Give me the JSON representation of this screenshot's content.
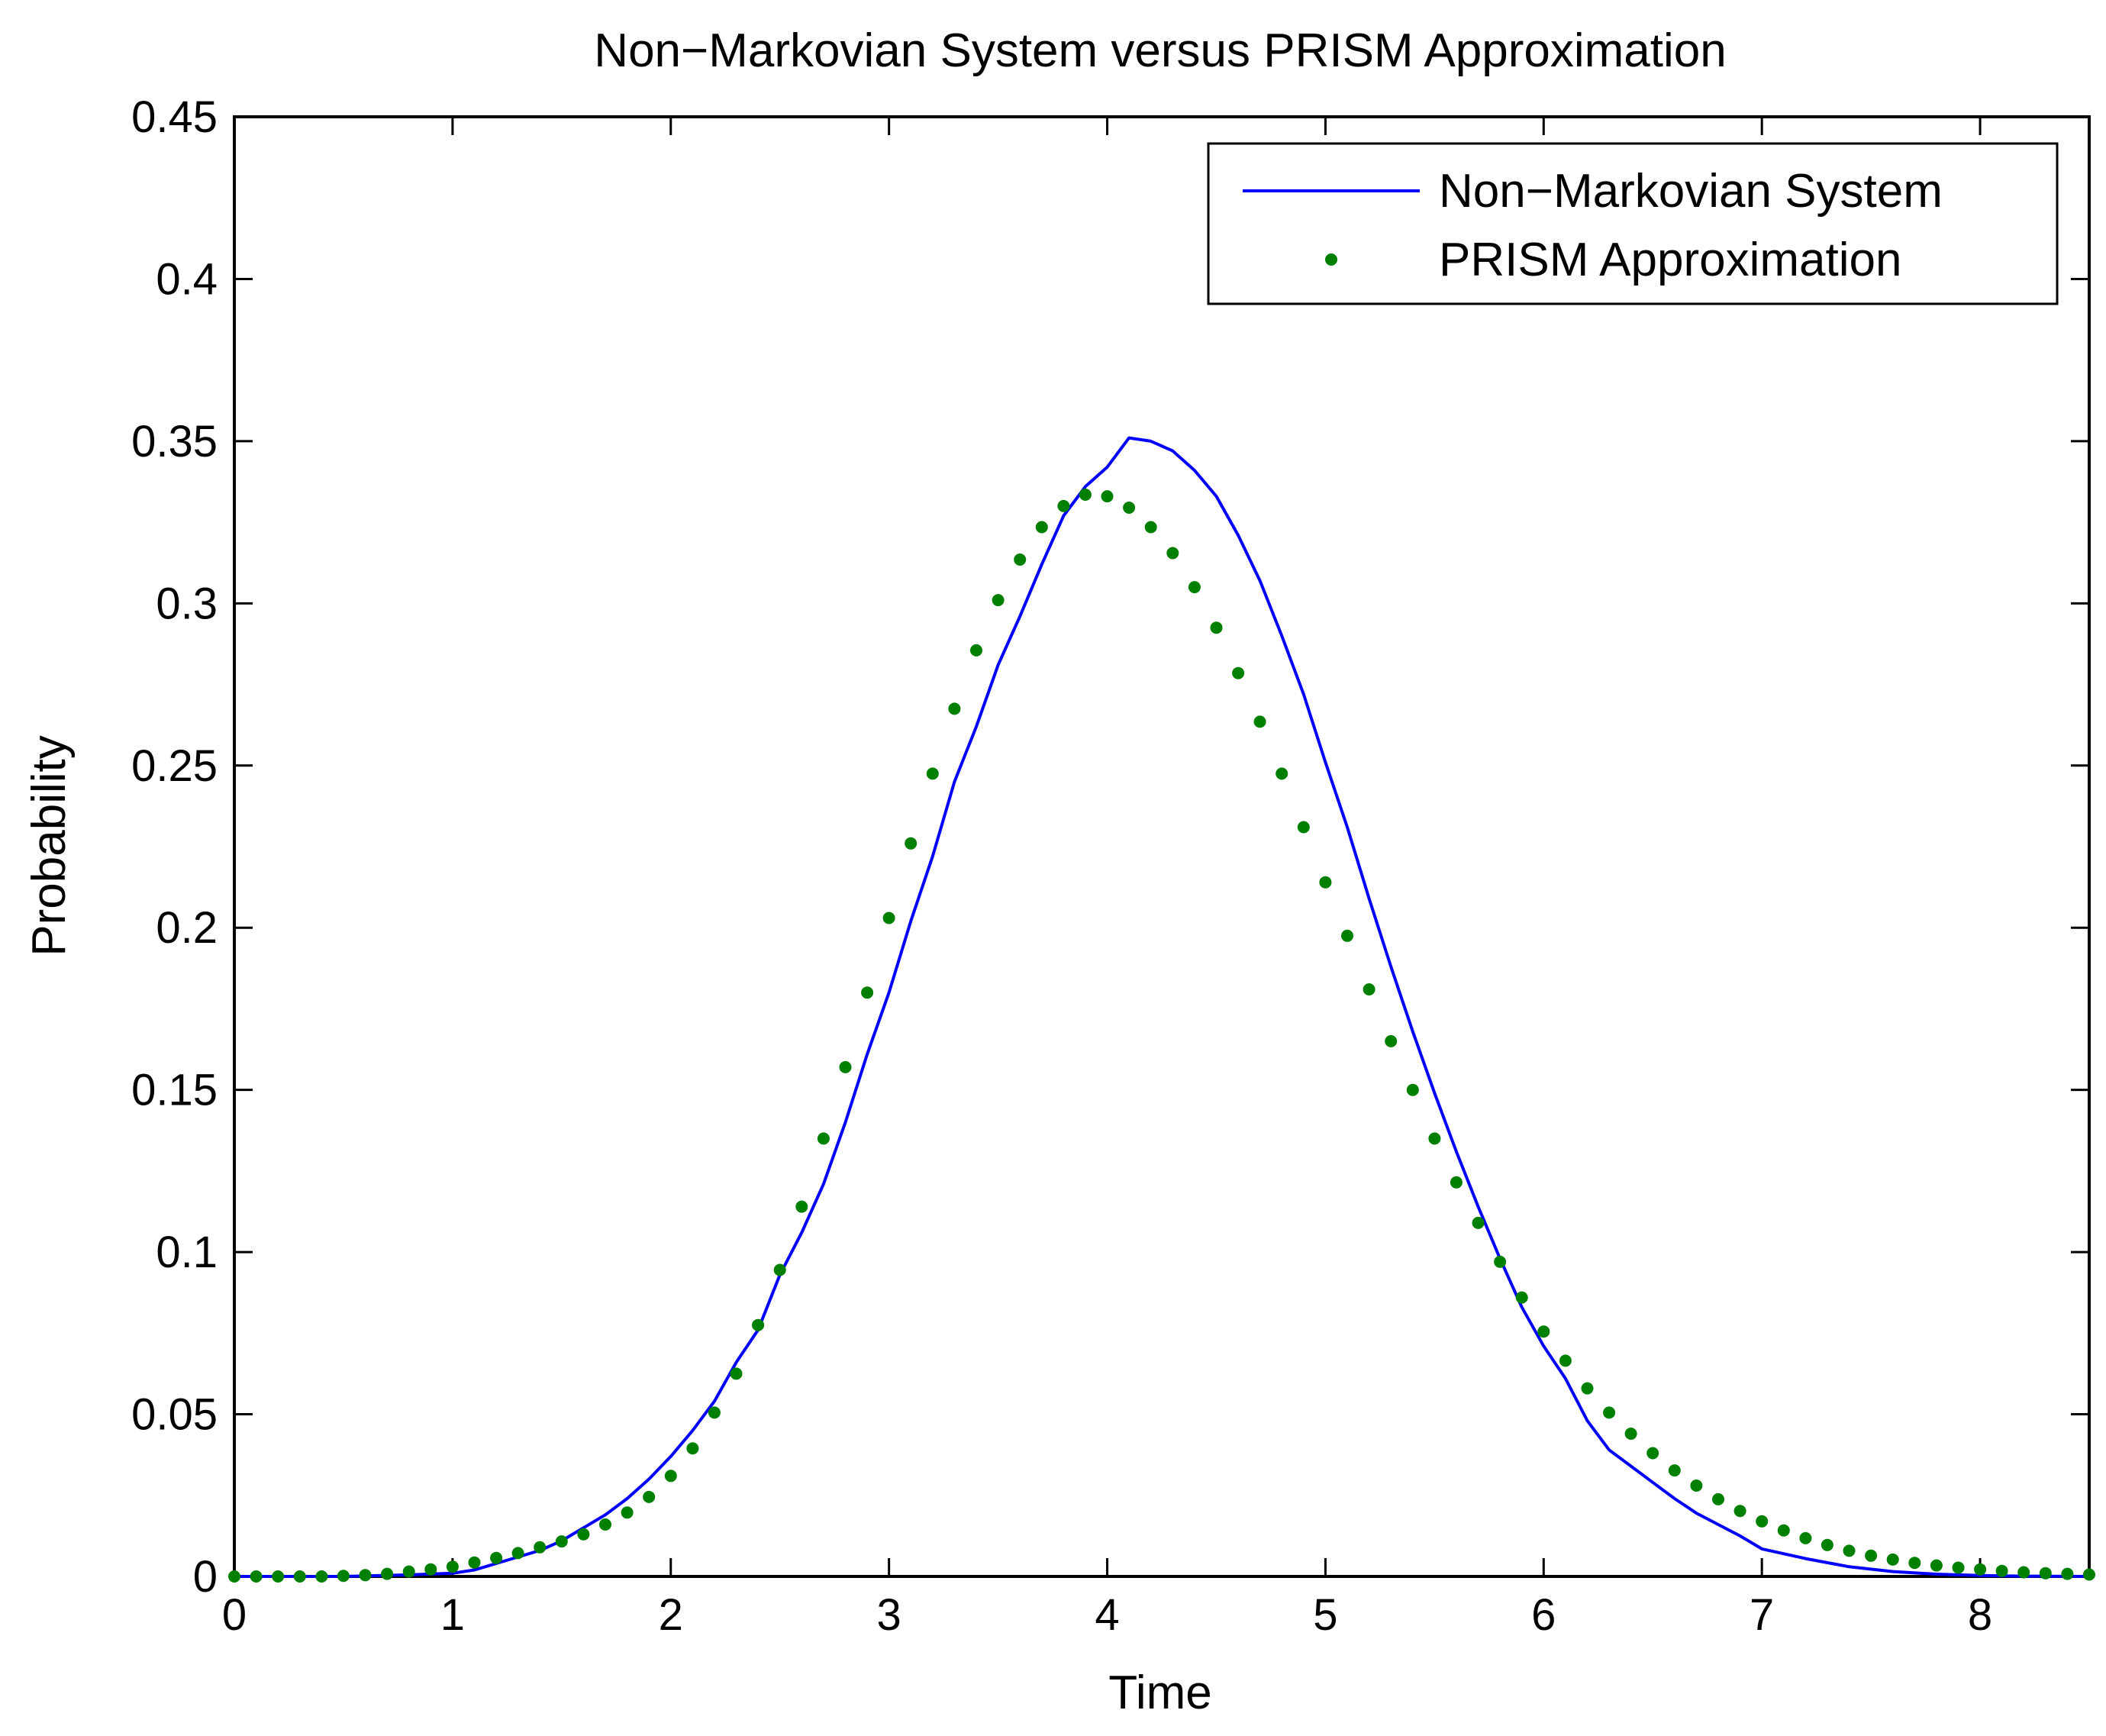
{
  "chart_data": {
    "type": "line",
    "title": "Non−Markovian System versus PRISM Approximation",
    "xlabel": "Time",
    "ylabel": "Probability",
    "xlim": [
      0,
      8.5
    ],
    "ylim": [
      0,
      0.45
    ],
    "xticks": [
      0,
      1,
      2,
      3,
      4,
      5,
      6,
      7,
      8
    ],
    "xtick_labels": [
      "0",
      "1",
      "2",
      "3",
      "4",
      "5",
      "6",
      "7",
      "8"
    ],
    "yticks": [
      0,
      0.05,
      0.1,
      0.15,
      0.2,
      0.25,
      0.3,
      0.35,
      0.4,
      0.45
    ],
    "ytick_labels": [
      "0",
      "0.05",
      "0.1",
      "0.15",
      "0.2",
      "0.25",
      "0.3",
      "0.35",
      "0.4",
      "0.45"
    ],
    "grid": false,
    "legend_position": "top-right",
    "series": [
      {
        "name": "Non−Markovian System",
        "style": "line",
        "color": "#0000ff",
        "x": [
          0,
          0.5,
          0.8,
          1.0,
          1.1,
          1.2,
          1.3,
          1.4,
          1.5,
          1.6,
          1.7,
          1.8,
          1.9,
          2.0,
          2.1,
          2.2,
          2.3,
          2.4,
          2.5,
          2.6,
          2.7,
          2.8,
          2.9,
          3.0,
          3.1,
          3.2,
          3.3,
          3.4,
          3.5,
          3.6,
          3.7,
          3.8,
          3.9,
          4.0,
          4.1,
          4.2,
          4.3,
          4.4,
          4.5,
          4.6,
          4.7,
          4.8,
          4.9,
          5.0,
          5.1,
          5.2,
          5.3,
          5.4,
          5.5,
          5.6,
          5.7,
          5.8,
          5.9,
          6.0,
          6.1,
          6.2,
          6.3,
          6.4,
          6.5,
          6.6,
          6.7,
          6.8,
          6.9,
          7.0,
          7.2,
          7.4,
          7.6,
          7.8,
          8.0,
          8.2,
          8.5
        ],
        "y": [
          0,
          0,
          0.0005,
          0.001,
          0.002,
          0.004,
          0.006,
          0.008,
          0.011,
          0.015,
          0.019,
          0.024,
          0.03,
          0.037,
          0.045,
          0.054,
          0.066,
          0.076,
          0.093,
          0.106,
          0.121,
          0.14,
          0.161,
          0.18,
          0.202,
          0.222,
          0.245,
          0.262,
          0.281,
          0.296,
          0.312,
          0.327,
          0.336,
          0.342,
          0.351,
          0.35,
          0.347,
          0.341,
          0.333,
          0.321,
          0.307,
          0.29,
          0.272,
          0.251,
          0.231,
          0.209,
          0.188,
          0.168,
          0.149,
          0.131,
          0.114,
          0.098,
          0.083,
          0.071,
          0.061,
          0.048,
          0.039,
          0.034,
          0.029,
          0.024,
          0.0195,
          0.016,
          0.0125,
          0.0085,
          0.0055,
          0.003,
          0.0015,
          0.0007,
          0.0003,
          0.0001,
          0
        ]
      },
      {
        "name": "PRISM Approximation",
        "style": "dots",
        "color": "#008000",
        "x": [
          0,
          0.1,
          0.2,
          0.3,
          0.4,
          0.5,
          0.6,
          0.7,
          0.8,
          0.9,
          1.0,
          1.1,
          1.2,
          1.3,
          1.4,
          1.5,
          1.6,
          1.7,
          1.8,
          1.9,
          2.0,
          2.1,
          2.2,
          2.3,
          2.4,
          2.5,
          2.6,
          2.7,
          2.8,
          2.9,
          3.0,
          3.1,
          3.2,
          3.3,
          3.4,
          3.5,
          3.6,
          3.7,
          3.8,
          3.9,
          4.0,
          4.1,
          4.2,
          4.3,
          4.4,
          4.5,
          4.6,
          4.7,
          4.8,
          4.9,
          5.0,
          5.1,
          5.2,
          5.3,
          5.4,
          5.5,
          5.6,
          5.7,
          5.8,
          5.9,
          6.0,
          6.1,
          6.2,
          6.3,
          6.4,
          6.5,
          6.6,
          6.7,
          6.8,
          6.9,
          7.0,
          7.1,
          7.2,
          7.3,
          7.4,
          7.5,
          7.6,
          7.7,
          7.8,
          7.9,
          8.0,
          8.1,
          8.2,
          8.3,
          8.4,
          8.5
        ],
        "y": [
          0,
          0,
          0,
          0,
          0,
          0.0002,
          0.0004,
          0.0008,
          0.0015,
          0.0022,
          0.003,
          0.0043,
          0.0057,
          0.0072,
          0.009,
          0.0108,
          0.013,
          0.016,
          0.0197,
          0.0245,
          0.031,
          0.0395,
          0.0505,
          0.0625,
          0.0775,
          0.0945,
          0.114,
          0.135,
          0.157,
          0.18,
          0.203,
          0.226,
          0.2475,
          0.2675,
          0.2855,
          0.301,
          0.3135,
          0.3235,
          0.33,
          0.3335,
          0.333,
          0.3295,
          0.3235,
          0.3155,
          0.305,
          0.2925,
          0.2785,
          0.2635,
          0.2475,
          0.231,
          0.214,
          0.1975,
          0.181,
          0.165,
          0.15,
          0.135,
          0.1215,
          0.109,
          0.097,
          0.086,
          0.0755,
          0.0665,
          0.058,
          0.0505,
          0.044,
          0.038,
          0.0327,
          0.028,
          0.0238,
          0.0202,
          0.017,
          0.0142,
          0.0118,
          0.0097,
          0.0079,
          0.0064,
          0.0052,
          0.0042,
          0.0034,
          0.0027,
          0.0022,
          0.0017,
          0.0013,
          0.001,
          0.0008,
          0.0006
        ]
      }
    ]
  }
}
